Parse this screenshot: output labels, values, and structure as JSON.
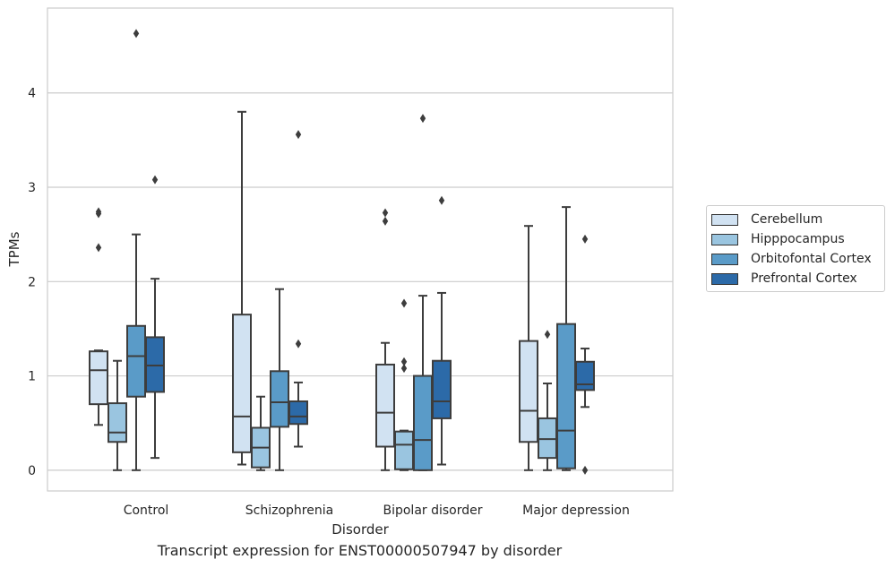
{
  "caption": "Transcript expression for ENST00000507947 by disorder",
  "chart_data": {
    "type": "box",
    "title": "",
    "xlabel": "Disorder",
    "ylabel": "TPMs",
    "ylim": [
      -0.22,
      4.9
    ],
    "yticks": [
      0,
      1,
      2,
      3,
      4
    ],
    "grid": "horizontal",
    "legend_position": "right",
    "categories": [
      "Control",
      "Schizophrenia",
      "Bipolar disorder",
      "Major depression"
    ],
    "series": [
      {
        "name": "Cerebellum",
        "color": "#d1e2f2",
        "boxes": [
          {
            "whisker_low": 0.48,
            "q1": 0.7,
            "median": 1.06,
            "q3": 1.26,
            "whisker_high": 1.27,
            "outliers": [
              2.36,
              2.72,
              2.74
            ]
          },
          {
            "whisker_low": 0.06,
            "q1": 0.19,
            "median": 0.57,
            "q3": 1.65,
            "whisker_high": 3.8,
            "outliers": []
          },
          {
            "whisker_low": 0.0,
            "q1": 0.25,
            "median": 0.61,
            "q3": 1.12,
            "whisker_high": 1.35,
            "outliers": [
              2.64,
              2.73
            ]
          },
          {
            "whisker_low": 0.0,
            "q1": 0.3,
            "median": 0.63,
            "q3": 1.37,
            "whisker_high": 2.59,
            "outliers": []
          }
        ]
      },
      {
        "name": "Hipppocampus",
        "color": "#9ac5e0",
        "boxes": [
          {
            "whisker_low": 0.0,
            "q1": 0.3,
            "median": 0.4,
            "q3": 0.71,
            "whisker_high": 1.16,
            "outliers": []
          },
          {
            "whisker_low": 0.0,
            "q1": 0.03,
            "median": 0.24,
            "q3": 0.45,
            "whisker_high": 0.78,
            "outliers": []
          },
          {
            "whisker_low": 0.0,
            "q1": 0.01,
            "median": 0.27,
            "q3": 0.41,
            "whisker_high": 0.42,
            "outliers": [
              1.08,
              1.15,
              1.77
            ]
          },
          {
            "whisker_low": 0.0,
            "q1": 0.13,
            "median": 0.33,
            "q3": 0.55,
            "whisker_high": 0.92,
            "outliers": [
              1.44
            ]
          }
        ]
      },
      {
        "name": "Orbitofontal Cortex",
        "color": "#5a9bc8",
        "boxes": [
          {
            "whisker_low": 0.0,
            "q1": 0.78,
            "median": 1.21,
            "q3": 1.53,
            "whisker_high": 2.5,
            "outliers": [
              4.63
            ]
          },
          {
            "whisker_low": 0.0,
            "q1": 0.46,
            "median": 0.72,
            "q3": 1.05,
            "whisker_high": 1.92,
            "outliers": []
          },
          {
            "whisker_low": 0.0,
            "q1": 0.0,
            "median": 0.32,
            "q3": 1.0,
            "whisker_high": 1.85,
            "outliers": [
              3.73
            ]
          },
          {
            "whisker_low": 0.0,
            "q1": 0.02,
            "median": 0.42,
            "q3": 1.55,
            "whisker_high": 2.79,
            "outliers": []
          }
        ]
      },
      {
        "name": "Prefrontal Cortex",
        "color": "#2c6aa8",
        "boxes": [
          {
            "whisker_low": 0.13,
            "q1": 0.83,
            "median": 1.11,
            "q3": 1.41,
            "whisker_high": 2.03,
            "outliers": [
              3.08
            ]
          },
          {
            "whisker_low": 0.25,
            "q1": 0.49,
            "median": 0.57,
            "q3": 0.73,
            "whisker_high": 0.93,
            "outliers": [
              1.34,
              3.56
            ]
          },
          {
            "whisker_low": 0.06,
            "q1": 0.55,
            "median": 0.73,
            "q3": 1.16,
            "whisker_high": 1.88,
            "outliers": [
              2.86
            ]
          },
          {
            "whisker_low": 0.67,
            "q1": 0.85,
            "median": 0.91,
            "q3": 1.15,
            "whisker_high": 1.29,
            "outliers": [
              0.0,
              2.45
            ]
          }
        ]
      }
    ]
  }
}
